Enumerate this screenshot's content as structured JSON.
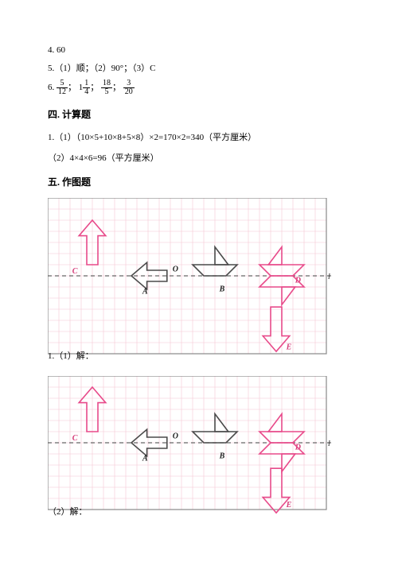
{
  "answers": {
    "a4": "4. 60",
    "a5": "5.（1）顺；（2）90°；（3）C",
    "a6_prefix": "6. ",
    "fracs": [
      {
        "n": "5",
        "d": "12"
      },
      {
        "whole": "1",
        "n": "1",
        "d": "4"
      },
      {
        "n": "18",
        "d": "5"
      },
      {
        "n": "3",
        "d": "20"
      }
    ],
    "sep": "；"
  },
  "section4": {
    "heading": "四. 计算题",
    "line1": "1.（1）（10×5+10×8+5×8）×2=170×2=340（平方厘米）",
    "line2": "（2）4×4×6=96（平方厘米）"
  },
  "section5": {
    "heading": "五. 作图题",
    "label1": "1.（1）解：",
    "label2": "（2）解："
  },
  "fig": {
    "grid_color": "#f4c5d3",
    "border_color": "#888888",
    "axis_color": "#666666",
    "shape_black": "#4a4a4a",
    "shape_pink": "#e84a8a",
    "label_color": "#d63e7a",
    "label_black": "#222222",
    "cell": 14,
    "cols": 25,
    "rows1": 14,
    "rows2": 12,
    "letters": {
      "A": "A",
      "B": "B",
      "C": "C",
      "D": "D",
      "E": "E",
      "O": "O",
      "l": "l"
    }
  }
}
